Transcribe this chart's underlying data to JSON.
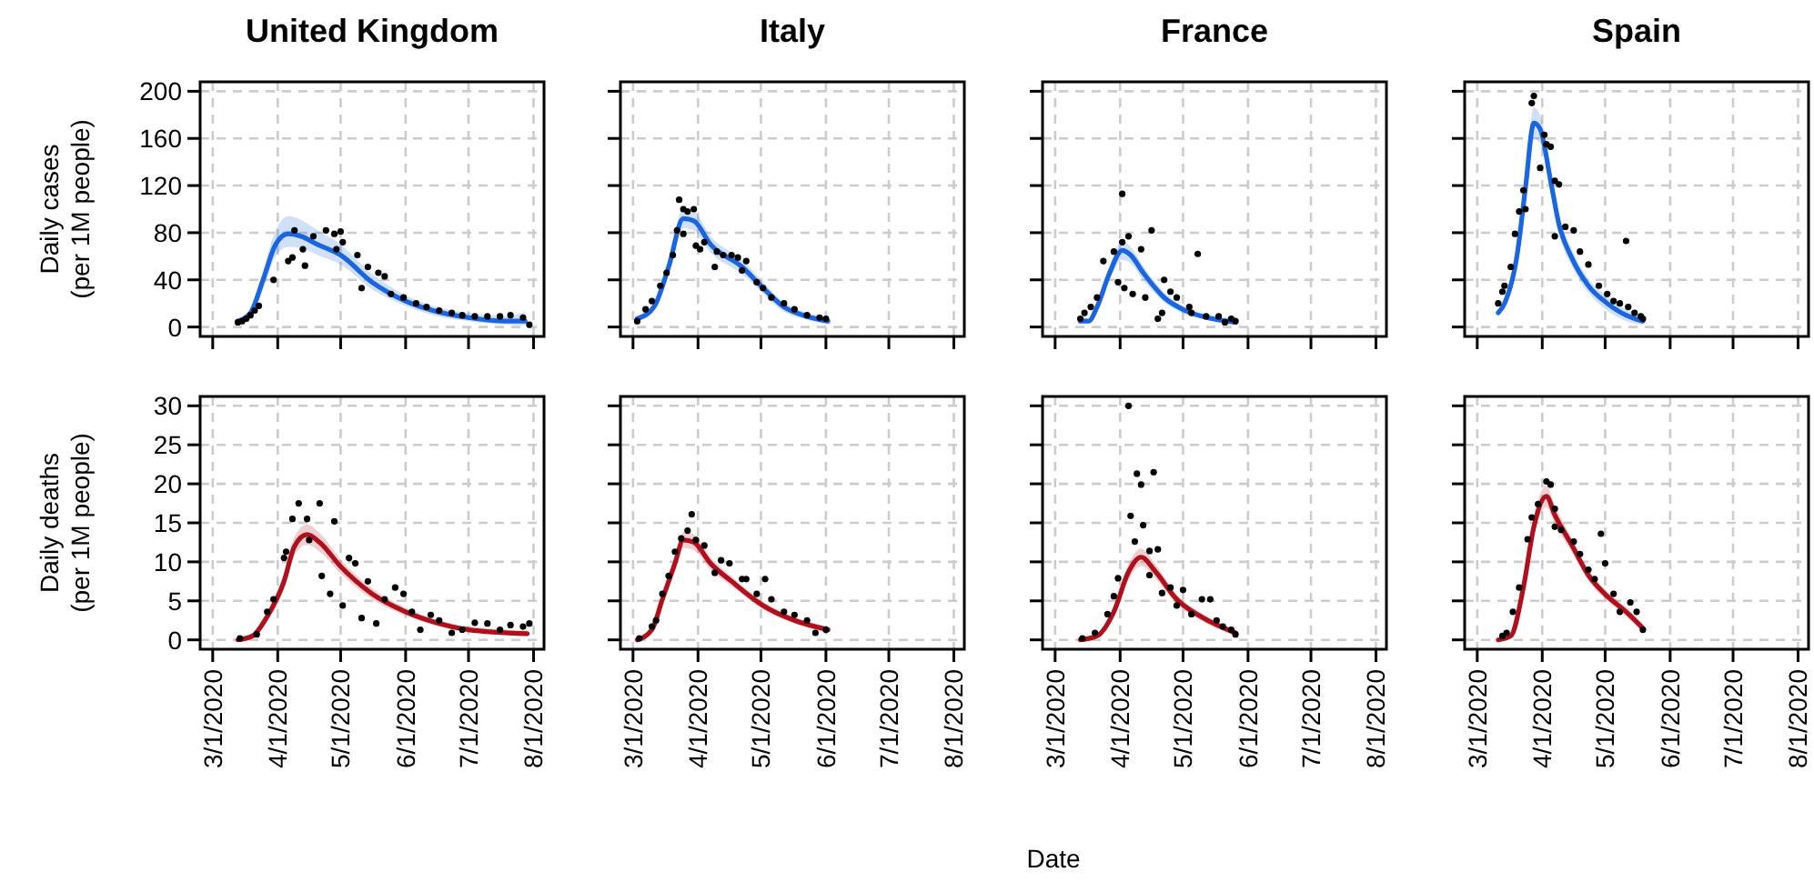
{
  "chart_data": [
    {
      "type": "scatter",
      "title": "United Kingdom",
      "ylabel": "Daily cases\n(per 1M people)",
      "xlim": [
        "2020-02-24",
        "2020-08-06"
      ],
      "ylim": [
        -8,
        208
      ],
      "xticks": [
        {
          "value": "2020-03-01",
          "label": null
        },
        {
          "value": "2020-04-01",
          "label": null
        },
        {
          "value": "2020-05-01",
          "label": null
        },
        {
          "value": "2020-06-01",
          "label": null
        },
        {
          "value": "2020-07-01",
          "label": null
        },
        {
          "value": "2020-08-01",
          "label": null
        }
      ],
      "yticks": [
        0,
        40,
        80,
        120,
        160,
        200
      ],
      "grid": true,
      "tick_labels": "y",
      "series": [
        {
          "type": "scatter",
          "marker": "circle",
          "color": "#000000",
          "x": [
            "2020-03-13",
            "2020-03-15",
            "2020-03-17",
            "2020-03-19",
            "2020-03-21",
            "2020-03-23",
            "2020-03-30",
            "2020-04-06",
            "2020-04-08",
            "2020-04-09",
            "2020-04-13",
            "2020-04-14",
            "2020-04-18",
            "2020-04-24",
            "2020-04-28",
            "2020-04-29",
            "2020-05-01",
            "2020-05-02",
            "2020-05-09",
            "2020-05-11",
            "2020-05-14",
            "2020-05-19",
            "2020-05-22",
            "2020-05-25",
            "2020-05-31",
            "2020-06-06",
            "2020-06-11",
            "2020-06-17",
            "2020-06-23",
            "2020-06-28",
            "2020-07-04",
            "2020-07-10",
            "2020-07-16",
            "2020-07-21",
            "2020-07-27",
            "2020-07-30"
          ],
          "values": [
            4,
            5,
            7,
            10,
            14,
            18,
            40,
            56,
            59,
            82,
            66,
            52,
            77,
            82,
            79,
            66,
            81,
            72,
            61,
            33,
            51,
            46,
            43,
            28,
            25,
            20,
            17,
            14,
            12,
            10,
            9,
            9,
            9,
            10,
            8,
            2
          ]
        },
        {
          "type": "line",
          "color": "#1a66e0",
          "x": [
            "2020-03-13",
            "2020-03-19",
            "2020-03-25",
            "2020-03-31",
            "2020-04-06",
            "2020-04-12",
            "2020-04-20",
            "2020-05-01",
            "2020-05-16",
            "2020-06-01",
            "2020-06-14",
            "2020-07-01",
            "2020-07-19",
            "2020-07-28"
          ],
          "values": [
            5,
            12,
            40,
            70,
            79,
            77,
            70,
            61,
            38,
            22,
            14,
            8,
            5,
            5
          ],
          "lower": [
            3,
            9,
            32,
            60,
            68,
            67,
            61,
            53,
            32,
            18,
            10,
            5,
            2,
            1
          ],
          "upper": [
            7,
            15,
            48,
            82,
            94,
            91,
            82,
            70,
            45,
            27,
            18,
            12,
            9,
            13
          ]
        }
      ]
    },
    {
      "type": "scatter",
      "title": "Italy",
      "xlim": [
        "2020-02-24",
        "2020-08-06"
      ],
      "ylim": [
        -8,
        208
      ],
      "xticks": [
        {
          "value": "2020-03-01",
          "label": null
        },
        {
          "value": "2020-04-01",
          "label": null
        },
        {
          "value": "2020-05-01",
          "label": null
        },
        {
          "value": "2020-06-01",
          "label": null
        },
        {
          "value": "2020-07-01",
          "label": null
        },
        {
          "value": "2020-08-01",
          "label": null
        }
      ],
      "yticks": [
        {
          "value": 0,
          "label": null
        },
        {
          "value": 40,
          "label": null
        },
        {
          "value": 80,
          "label": null
        },
        {
          "value": 120,
          "label": null
        },
        {
          "value": 160,
          "label": null
        },
        {
          "value": 200,
          "label": null
        }
      ],
      "grid": true,
      "tick_labels": false,
      "series": [
        {
          "type": "scatter",
          "marker": "circle",
          "color": "#000000",
          "x": [
            "2020-03-03",
            "2020-03-07",
            "2020-03-10",
            "2020-03-14",
            "2020-03-17",
            "2020-03-20",
            "2020-03-22",
            "2020-03-23",
            "2020-03-25",
            "2020-03-25",
            "2020-03-27",
            "2020-03-30",
            "2020-03-31",
            "2020-04-02",
            "2020-04-04",
            "2020-04-09",
            "2020-04-10",
            "2020-04-13",
            "2020-04-17",
            "2020-04-20",
            "2020-04-22",
            "2020-04-24",
            "2020-04-29",
            "2020-05-02",
            "2020-05-06",
            "2020-05-12",
            "2020-05-17",
            "2020-05-23",
            "2020-05-29",
            "2020-06-01"
          ],
          "values": [
            5,
            15,
            22,
            35,
            46,
            61,
            82,
            108,
            100,
            79,
            98,
            100,
            69,
            66,
            72,
            51,
            64,
            61,
            61,
            59,
            48,
            56,
            38,
            33,
            25,
            20,
            15,
            10,
            8,
            7
          ]
        },
        {
          "type": "line",
          "color": "#1a66e0",
          "x": [
            "2020-03-03",
            "2020-03-11",
            "2020-03-18",
            "2020-03-25",
            "2020-03-30",
            "2020-04-07",
            "2020-04-22",
            "2020-05-01",
            "2020-05-12",
            "2020-05-23",
            "2020-06-02"
          ],
          "values": [
            7,
            17,
            51,
            92,
            90,
            70,
            51,
            35,
            17,
            9,
            5
          ],
          "lower": [
            5,
            13,
            44,
            84,
            82,
            63,
            45,
            30,
            13,
            6,
            2
          ],
          "upper": [
            9,
            21,
            58,
            100,
            98,
            77,
            57,
            40,
            21,
            12,
            8
          ]
        }
      ]
    },
    {
      "type": "scatter",
      "title": "France",
      "xlim": [
        "2020-02-24",
        "2020-08-06"
      ],
      "ylim": [
        -8,
        208
      ],
      "xticks": [
        {
          "value": "2020-03-01",
          "label": null
        },
        {
          "value": "2020-04-01",
          "label": null
        },
        {
          "value": "2020-05-01",
          "label": null
        },
        {
          "value": "2020-06-01",
          "label": null
        },
        {
          "value": "2020-07-01",
          "label": null
        },
        {
          "value": "2020-08-01",
          "label": null
        }
      ],
      "yticks": [
        {
          "value": 0,
          "label": null
        },
        {
          "value": 40,
          "label": null
        },
        {
          "value": 80,
          "label": null
        },
        {
          "value": 120,
          "label": null
        },
        {
          "value": 160,
          "label": null
        },
        {
          "value": 200,
          "label": null
        }
      ],
      "grid": true,
      "tick_labels": false,
      "series": [
        {
          "type": "scatter",
          "marker": "circle",
          "color": "#000000",
          "x": [
            "2020-03-13",
            "2020-03-15",
            "2020-03-18",
            "2020-03-21",
            "2020-03-24",
            "2020-03-29",
            "2020-03-31",
            "2020-04-02",
            "2020-04-02",
            "2020-04-05",
            "2020-04-03",
            "2020-04-07",
            "2020-04-11",
            "2020-04-13",
            "2020-04-16",
            "2020-04-19",
            "2020-04-22",
            "2020-04-21",
            "2020-04-25",
            "2020-04-28",
            "2020-05-04",
            "2020-05-08",
            "2020-05-05",
            "2020-05-12",
            "2020-05-18",
            "2020-05-21",
            "2020-05-24",
            "2020-05-26"
          ],
          "values": [
            7,
            12,
            17,
            25,
            56,
            64,
            38,
            113,
            72,
            77,
            33,
            28,
            66,
            25,
            82,
            7,
            40,
            12,
            30,
            25,
            17,
            62,
            12,
            9,
            9,
            4,
            7,
            5
          ]
        },
        {
          "type": "line",
          "color": "#1a66e0",
          "x": [
            "2020-03-13",
            "2020-03-17",
            "2020-03-21",
            "2020-03-27",
            "2020-04-02",
            "2020-04-06",
            "2020-04-12",
            "2020-04-22",
            "2020-05-02",
            "2020-05-15",
            "2020-05-26"
          ],
          "values": [
            5,
            5,
            17,
            46,
            65,
            61,
            46,
            25,
            14,
            7,
            4
          ],
          "lower": [
            3,
            3,
            13,
            40,
            57,
            54,
            40,
            21,
            11,
            5,
            2
          ],
          "upper": [
            7,
            7,
            21,
            52,
            73,
            68,
            52,
            29,
            17,
            10,
            7
          ]
        }
      ]
    },
    {
      "type": "scatter",
      "title": "Spain",
      "xlim": [
        "2020-02-24",
        "2020-08-06"
      ],
      "ylim": [
        -8,
        208
      ],
      "xticks": [
        {
          "value": "2020-03-01",
          "label": null
        },
        {
          "value": "2020-04-01",
          "label": null
        },
        {
          "value": "2020-05-01",
          "label": null
        },
        {
          "value": "2020-06-01",
          "label": null
        },
        {
          "value": "2020-07-01",
          "label": null
        },
        {
          "value": "2020-08-01",
          "label": null
        }
      ],
      "yticks": [
        {
          "value": 0,
          "label": null
        },
        {
          "value": 40,
          "label": null
        },
        {
          "value": 80,
          "label": null
        },
        {
          "value": 120,
          "label": null
        },
        {
          "value": 160,
          "label": null
        },
        {
          "value": 200,
          "label": null
        }
      ],
      "grid": true,
      "tick_labels": false,
      "series": [
        {
          "type": "scatter",
          "marker": "circle",
          "color": "#000000",
          "x": [
            "2020-03-11",
            "2020-03-13",
            "2020-03-14",
            "2020-03-17",
            "2020-03-19",
            "2020-03-21",
            "2020-03-23",
            "2020-03-24",
            "2020-03-27",
            "2020-03-28",
            "2020-03-31",
            "2020-04-02",
            "2020-04-03",
            "2020-04-05",
            "2020-04-07",
            "2020-04-09",
            "2020-04-07",
            "2020-04-12",
            "2020-04-16",
            "2020-04-19",
            "2020-04-23",
            "2020-04-28",
            "2020-05-02",
            "2020-05-05",
            "2020-05-08",
            "2020-05-11",
            "2020-05-12",
            "2020-05-15",
            "2020-05-18",
            "2020-05-19"
          ],
          "values": [
            20,
            30,
            35,
            51,
            79,
            98,
            116,
            100,
            190,
            196,
            135,
            163,
            155,
            153,
            124,
            121,
            77,
            85,
            82,
            64,
            53,
            35,
            28,
            22,
            20,
            73,
            17,
            12,
            9,
            7
          ]
        },
        {
          "type": "line",
          "color": "#1a66e0",
          "x": [
            "2020-03-11",
            "2020-03-14",
            "2020-03-20",
            "2020-03-24",
            "2020-03-28",
            "2020-03-31",
            "2020-04-05",
            "2020-04-09",
            "2020-04-15",
            "2020-04-23",
            "2020-05-02",
            "2020-05-11",
            "2020-05-19"
          ],
          "values": [
            12,
            20,
            61,
            118,
            173,
            168,
            124,
            87,
            59,
            35,
            20,
            10,
            5
          ],
          "lower": [
            10,
            16,
            52,
            106,
            160,
            156,
            114,
            79,
            52,
            29,
            14,
            5,
            2
          ],
          "upper": [
            14,
            24,
            70,
            130,
            186,
            180,
            134,
            95,
            66,
            41,
            26,
            15,
            9
          ]
        }
      ]
    },
    {
      "type": "scatter",
      "ylabel": "Daily deaths\n(per 1M people)",
      "xlim": [
        "2020-02-24",
        "2020-08-06"
      ],
      "ylim": [
        -1.2,
        31.2
      ],
      "xticks": [
        {
          "value": "2020-03-01",
          "label": "3/1/2020"
        },
        {
          "value": "2020-04-01",
          "label": "4/1/2020"
        },
        {
          "value": "2020-05-01",
          "label": "5/1/2020"
        },
        {
          "value": "2020-06-01",
          "label": "6/1/2020"
        },
        {
          "value": "2020-07-01",
          "label": "7/1/2020"
        },
        {
          "value": "2020-08-01",
          "label": "8/1/2020"
        }
      ],
      "yticks": [
        0,
        5,
        10,
        15,
        20,
        25,
        30
      ],
      "grid": true,
      "series": [
        {
          "type": "scatter",
          "marker": "circle",
          "color": "#000000",
          "x": [
            "2020-03-14",
            "2020-03-22",
            "2020-03-27",
            "2020-03-30",
            "2020-04-04",
            "2020-04-05",
            "2020-04-08",
            "2020-04-11",
            "2020-04-15",
            "2020-04-16",
            "2020-04-21",
            "2020-04-22",
            "2020-04-26",
            "2020-04-28",
            "2020-05-02",
            "2020-05-05",
            "2020-05-08",
            "2020-05-11",
            "2020-05-14",
            "2020-05-18",
            "2020-05-22",
            "2020-05-27",
            "2020-05-31",
            "2020-06-04",
            "2020-06-08",
            "2020-06-13",
            "2020-06-17",
            "2020-06-23",
            "2020-06-28",
            "2020-07-04",
            "2020-07-10",
            "2020-07-16",
            "2020-07-21",
            "2020-07-27",
            "2020-07-30"
          ],
          "values": [
            0.2,
            0.7,
            3.6,
            5.2,
            10.5,
            11.3,
            15.5,
            17.5,
            15.5,
            12.8,
            17.5,
            8.2,
            5.9,
            15.2,
            4.4,
            10.5,
            9.8,
            2.8,
            7.5,
            2.1,
            5.2,
            6.7,
            5.9,
            3.6,
            1.3,
            3.2,
            2.5,
            0.9,
            1.3,
            2.2,
            2.1,
            1.3,
            1.9,
            1.7,
            2.1
          ]
        },
        {
          "type": "line",
          "color": "#b0101c",
          "x": [
            "2020-03-13",
            "2020-03-20",
            "2020-03-27",
            "2020-04-04",
            "2020-04-09",
            "2020-04-15",
            "2020-04-21",
            "2020-05-01",
            "2020-05-16",
            "2020-06-01",
            "2020-06-17",
            "2020-07-01",
            "2020-07-29"
          ],
          "values": [
            0,
            0.5,
            3,
            7.5,
            12,
            13.5,
            12.5,
            9.4,
            5.9,
            3.6,
            2.1,
            1.3,
            0.8
          ],
          "lower": [
            0,
            0.3,
            2.4,
            6.5,
            10.8,
            12.2,
            11.3,
            8.5,
            5.2,
            3.1,
            1.7,
            1,
            0.5
          ],
          "upper": [
            0.2,
            0.8,
            3.6,
            8.5,
            13.2,
            14.8,
            13.7,
            10.3,
            6.6,
            4.1,
            2.5,
            1.7,
            1.2
          ]
        }
      ]
    },
    {
      "type": "scatter",
      "xlim": [
        "2020-02-24",
        "2020-08-06"
      ],
      "ylim": [
        -1.2,
        31.2
      ],
      "xticks": [
        {
          "value": "2020-03-01",
          "label": "3/1/2020"
        },
        {
          "value": "2020-04-01",
          "label": "4/1/2020"
        },
        {
          "value": "2020-05-01",
          "label": "5/1/2020"
        },
        {
          "value": "2020-06-01",
          "label": "6/1/2020"
        },
        {
          "value": "2020-07-01",
          "label": "7/1/2020"
        },
        {
          "value": "2020-08-01",
          "label": "8/1/2020"
        }
      ],
      "yticks": [
        {
          "value": 0,
          "label": null
        },
        {
          "value": 5,
          "label": null
        },
        {
          "value": 10,
          "label": null
        },
        {
          "value": 15,
          "label": null
        },
        {
          "value": 20,
          "label": null
        },
        {
          "value": 25,
          "label": null
        },
        {
          "value": 30,
          "label": null
        }
      ],
      "grid": true,
      "tick_labels": "x",
      "series": [
        {
          "type": "scatter",
          "marker": "circle",
          "color": "#000000",
          "x": [
            "2020-03-04",
            "2020-03-10",
            "2020-03-12",
            "2020-03-15",
            "2020-03-18",
            "2020-03-21",
            "2020-03-24",
            "2020-03-27",
            "2020-03-29",
            "2020-03-31",
            "2020-04-04",
            "2020-04-09",
            "2020-04-12",
            "2020-04-16",
            "2020-04-22",
            "2020-04-24",
            "2020-04-29",
            "2020-05-03",
            "2020-05-06",
            "2020-05-12",
            "2020-05-17",
            "2020-05-23",
            "2020-05-27",
            "2020-06-01"
          ],
          "values": [
            0.2,
            1.7,
            2.5,
            5.9,
            8.2,
            11.3,
            13,
            14,
            16.1,
            12.8,
            12.1,
            8.6,
            10.2,
            9.8,
            7.8,
            7.8,
            5.9,
            7.8,
            5.2,
            3.6,
            3.2,
            2.5,
            0.9,
            1.3
          ]
        },
        {
          "type": "line",
          "color": "#b0101c",
          "x": [
            "2020-03-03",
            "2020-03-10",
            "2020-03-15",
            "2020-03-21",
            "2020-03-25",
            "2020-03-30",
            "2020-04-07",
            "2020-04-17",
            "2020-05-02",
            "2020-05-17",
            "2020-06-02"
          ],
          "values": [
            0,
            1.3,
            5.2,
            9.8,
            12.8,
            12.5,
            9.8,
            7.5,
            4.4,
            2.5,
            1.3
          ],
          "lower": [
            0,
            1,
            4.5,
            8.9,
            11.8,
            11.5,
            9,
            6.9,
            3.9,
            2.1,
            0.9
          ],
          "upper": [
            0.2,
            1.6,
            5.9,
            10.7,
            13.8,
            13.5,
            10.6,
            8.1,
            4.9,
            2.9,
            1.7
          ]
        }
      ]
    },
    {
      "type": "scatter",
      "xlabel": "Date",
      "xlim": [
        "2020-02-24",
        "2020-08-06"
      ],
      "ylim": [
        -1.2,
        31.2
      ],
      "xticks": [
        {
          "value": "2020-03-01",
          "label": "3/1/2020"
        },
        {
          "value": "2020-04-01",
          "label": "4/1/2020"
        },
        {
          "value": "2020-05-01",
          "label": "5/1/2020"
        },
        {
          "value": "2020-06-01",
          "label": "6/1/2020"
        },
        {
          "value": "2020-07-01",
          "label": "7/1/2020"
        },
        {
          "value": "2020-08-01",
          "label": "8/1/2020"
        }
      ],
      "yticks": [
        {
          "value": 0,
          "label": null
        },
        {
          "value": 5,
          "label": null
        },
        {
          "value": 10,
          "label": null
        },
        {
          "value": 15,
          "label": null
        },
        {
          "value": 20,
          "label": null
        },
        {
          "value": 25,
          "label": null
        },
        {
          "value": 30,
          "label": null
        }
      ],
      "grid": true,
      "tick_labels": "x",
      "series": [
        {
          "type": "scatter",
          "marker": "circle",
          "color": "#000000",
          "x": [
            "2020-03-14",
            "2020-03-20",
            "2020-03-26",
            "2020-03-29",
            "2020-03-31",
            "2020-04-05",
            "2020-04-06",
            "2020-04-09",
            "2020-04-11",
            "2020-04-17",
            "2020-04-12",
            "2020-04-08",
            "2020-04-15",
            "2020-04-19",
            "2020-04-15",
            "2020-04-21",
            "2020-04-25",
            "2020-04-28",
            "2020-05-01",
            "2020-05-05",
            "2020-05-10",
            "2020-05-14",
            "2020-05-17",
            "2020-05-20",
            "2020-05-24",
            "2020-05-26"
          ],
          "values": [
            0.2,
            0.9,
            3.3,
            5.6,
            7.9,
            30,
            15.9,
            21.3,
            19.9,
            21.5,
            14.7,
            12.6,
            11.4,
            11.6,
            8.3,
            6,
            6.7,
            4.4,
            6.4,
            3.3,
            5.2,
            5.2,
            2.5,
            1.7,
            1.3,
            0.7
          ]
        },
        {
          "type": "line",
          "color": "#b0101c",
          "x": [
            "2020-03-13",
            "2020-03-21",
            "2020-03-29",
            "2020-04-05",
            "2020-04-11",
            "2020-04-18",
            "2020-04-28",
            "2020-05-10",
            "2020-05-26"
          ],
          "values": [
            0,
            0.5,
            3.6,
            8.7,
            10.6,
            8.7,
            5.2,
            2.9,
            0.9
          ],
          "lower": [
            0,
            0.3,
            3,
            7.7,
            9.5,
            7.8,
            4.6,
            2.4,
            0.5
          ],
          "upper": [
            0.2,
            0.8,
            4.2,
            9.7,
            11.7,
            9.6,
            5.8,
            3.4,
            1.3
          ]
        }
      ]
    },
    {
      "type": "scatter",
      "xlim": [
        "2020-02-24",
        "2020-08-06"
      ],
      "ylim": [
        -1.2,
        31.2
      ],
      "xticks": [
        {
          "value": "2020-03-01",
          "label": "3/1/2020"
        },
        {
          "value": "2020-04-01",
          "label": "4/1/2020"
        },
        {
          "value": "2020-05-01",
          "label": "5/1/2020"
        },
        {
          "value": "2020-06-01",
          "label": "6/1/2020"
        },
        {
          "value": "2020-07-01",
          "label": "7/1/2020"
        },
        {
          "value": "2020-08-01",
          "label": "8/1/2020"
        }
      ],
      "yticks": [
        {
          "value": 0,
          "label": null
        },
        {
          "value": 5,
          "label": null
        },
        {
          "value": 10,
          "label": null
        },
        {
          "value": 15,
          "label": null
        },
        {
          "value": 20,
          "label": null
        },
        {
          "value": 25,
          "label": null
        },
        {
          "value": 30,
          "label": null
        }
      ],
      "grid": true,
      "tick_labels": "x",
      "series": [
        {
          "type": "scatter",
          "marker": "circle",
          "color": "#000000",
          "x": [
            "2020-03-13",
            "2020-03-15",
            "2020-03-18",
            "2020-03-21",
            "2020-03-25",
            "2020-03-27",
            "2020-03-30",
            "2020-04-03",
            "2020-04-05",
            "2020-04-07",
            "2020-04-10",
            "2020-04-16",
            "2020-04-19",
            "2020-04-07",
            "2020-04-29",
            "2020-05-01",
            "2020-04-23",
            "2020-04-26",
            "2020-05-05",
            "2020-05-08",
            "2020-05-13",
            "2020-05-16",
            "2020-05-19"
          ],
          "values": [
            0.5,
            0.9,
            3.6,
            6.7,
            12.9,
            15.7,
            17.4,
            20.3,
            19.9,
            14.5,
            14.1,
            12.6,
            11,
            16.8,
            13.6,
            9.8,
            9,
            7.8,
            5.9,
            3.6,
            4.8,
            3.6,
            1.3
          ]
        },
        {
          "type": "line",
          "color": "#b0101c",
          "x": [
            "2020-03-11",
            "2020-03-17",
            "2020-03-23",
            "2020-03-28",
            "2020-04-03",
            "2020-04-07",
            "2020-04-15",
            "2020-04-23",
            "2020-05-02",
            "2020-05-11",
            "2020-05-19"
          ],
          "values": [
            0,
            0.5,
            6.7,
            14.5,
            18.4,
            16,
            12.2,
            8.3,
            5.6,
            3.6,
            1.5
          ],
          "lower": [
            0,
            0.3,
            5.8,
            13.3,
            17,
            14.8,
            11.3,
            7.6,
            5,
            3,
            1
          ],
          "upper": [
            0.2,
            0.8,
            7.6,
            15.7,
            19.8,
            17.2,
            13.1,
            9,
            6.2,
            4.2,
            2
          ]
        }
      ]
    }
  ]
}
